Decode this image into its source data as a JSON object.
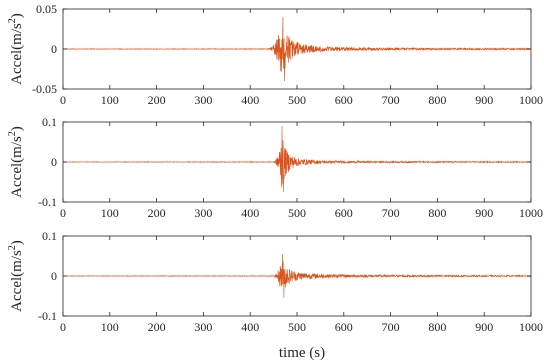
{
  "colors": {
    "signal": "#d95319",
    "axes": "#262626"
  },
  "xlabel": "time (s)",
  "chart_data": [
    {
      "type": "line",
      "name": "top",
      "ylabel_text": "Accel(m/s",
      "ylabel_sup": "2",
      "ylabel_close": ")",
      "xlim": [
        0,
        1000
      ],
      "ylim": [
        -0.05,
        0.05
      ],
      "xticks": [
        0,
        100,
        200,
        300,
        400,
        500,
        600,
        700,
        800,
        900,
        1000
      ],
      "xtick_labels": [
        "0",
        "100",
        "200",
        "300",
        "400",
        "500",
        "600",
        "700",
        "800",
        "900",
        "1000"
      ],
      "yticks": [
        -0.05,
        0,
        0.05
      ],
      "ytick_labels": [
        "-0.05",
        "0",
        "0.05"
      ],
      "envelope": [
        [
          0,
          0.0003
        ],
        [
          440,
          0.0004
        ],
        [
          448,
          0.004
        ],
        [
          455,
          0.012
        ],
        [
          462,
          0.02
        ],
        [
          468,
          0.036
        ],
        [
          472,
          0.03
        ],
        [
          478,
          0.02
        ],
        [
          485,
          0.015
        ],
        [
          495,
          0.01
        ],
        [
          510,
          0.007
        ],
        [
          530,
          0.005
        ],
        [
          560,
          0.003
        ],
        [
          600,
          0.0022
        ],
        [
          700,
          0.0016
        ],
        [
          800,
          0.0012
        ],
        [
          900,
          0.001
        ],
        [
          1000,
          0.0008
        ]
      ],
      "peak": {
        "x": 470,
        "ymax": 0.04,
        "ymin": -0.04
      }
    },
    {
      "type": "line",
      "name": "middle",
      "ylabel_text": "Accel(m/s",
      "ylabel_sup": "2",
      "ylabel_close": ")",
      "xlim": [
        0,
        1000
      ],
      "ylim": [
        -0.1,
        0.1
      ],
      "xticks": [
        0,
        100,
        200,
        300,
        400,
        500,
        600,
        700,
        800,
        900,
        1000
      ],
      "xtick_labels": [
        "0",
        "100",
        "200",
        "300",
        "400",
        "500",
        "600",
        "700",
        "800",
        "900",
        "1000"
      ],
      "yticks": [
        -0.1,
        0,
        0.1
      ],
      "ytick_labels": [
        "-0.1",
        "0",
        "0.1"
      ],
      "envelope": [
        [
          0,
          0.0005
        ],
        [
          450,
          0.0008
        ],
        [
          456,
          0.008
        ],
        [
          462,
          0.03
        ],
        [
          467,
          0.07
        ],
        [
          471,
          0.05
        ],
        [
          478,
          0.03
        ],
        [
          488,
          0.018
        ],
        [
          500,
          0.011
        ],
        [
          520,
          0.007
        ],
        [
          550,
          0.004
        ],
        [
          600,
          0.003
        ],
        [
          700,
          0.002
        ],
        [
          850,
          0.0015
        ],
        [
          1000,
          0.001
        ]
      ],
      "peak": {
        "x": 468,
        "ymax": 0.09,
        "ymin": -0.075
      }
    },
    {
      "type": "line",
      "name": "bottom",
      "ylabel_text": "Accel(m/s",
      "ylabel_sup": "2",
      "ylabel_close": ")",
      "xlim": [
        0,
        1000
      ],
      "ylim": [
        -0.1,
        0.1
      ],
      "xticks": [
        0,
        100,
        200,
        300,
        400,
        500,
        600,
        700,
        800,
        900,
        1000
      ],
      "xtick_labels": [
        "0",
        "100",
        "200",
        "300",
        "400",
        "500",
        "600",
        "700",
        "800",
        "900",
        "1000"
      ],
      "yticks": [
        -0.1,
        0,
        0.1
      ],
      "ytick_labels": [
        "-0.1",
        "0",
        "0.1"
      ],
      "envelope": [
        [
          0,
          0.0005
        ],
        [
          450,
          0.0008
        ],
        [
          456,
          0.006
        ],
        [
          462,
          0.02
        ],
        [
          468,
          0.045
        ],
        [
          473,
          0.035
        ],
        [
          480,
          0.022
        ],
        [
          490,
          0.015
        ],
        [
          505,
          0.01
        ],
        [
          530,
          0.007
        ],
        [
          560,
          0.005
        ],
        [
          600,
          0.004
        ],
        [
          700,
          0.003
        ],
        [
          850,
          0.002
        ],
        [
          1000,
          0.0015
        ]
      ],
      "peak": {
        "x": 469,
        "ymax": 0.055,
        "ymin": -0.055
      }
    }
  ]
}
